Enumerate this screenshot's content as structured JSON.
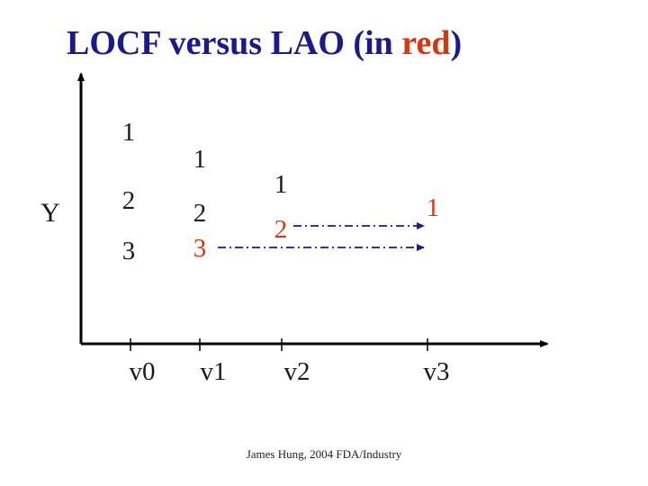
{
  "title": {
    "prefix": "LOCF versus LAO (in ",
    "highlight": "red",
    "suffix": ")"
  },
  "colors": {
    "title": "#1a1a8c",
    "highlight": "#d4380d",
    "text": "#1a1a1a",
    "axis": "#000000",
    "arrow": "#1a1a8c"
  },
  "y_axis_label": "Y",
  "x_axis_ticks": [
    "v0",
    "v1",
    "v2",
    "v3"
  ],
  "visits": {
    "v0": {
      "values": [
        "1",
        "2",
        "3"
      ]
    },
    "v1": {
      "values": [
        "1",
        "2",
        "3"
      ]
    },
    "v2": {
      "values": [
        "1",
        "2"
      ]
    },
    "v3": {
      "values": [
        "1"
      ]
    }
  },
  "carried_forward": [
    {
      "value": "3",
      "from": "v1",
      "to": "v3"
    },
    {
      "value": "2",
      "from": "v2",
      "to": "v3"
    }
  ],
  "credit": "James Hung, 2004 FDA/Industry"
}
